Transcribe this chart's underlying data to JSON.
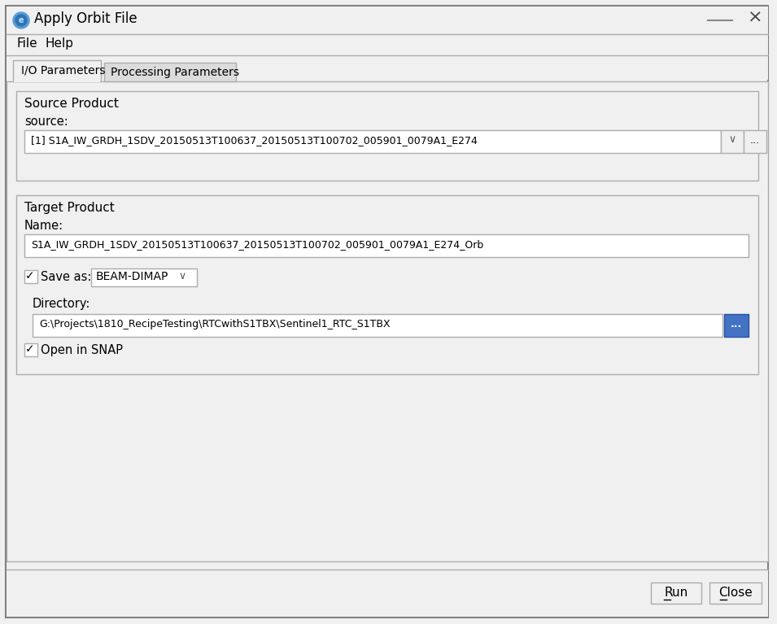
{
  "title": "Apply Orbit File",
  "menu_file": "File",
  "menu_help": "Help",
  "tab_active": "I/O Parameters",
  "tab_inactive": "Processing Parameters",
  "source_product_label": "Source Product",
  "source_label": "source:",
  "source_value": "[1] S1A_IW_GRDH_1SDV_20150513T100637_20150513T100702_005901_0079A1_E274",
  "target_product_label": "Target Product",
  "name_label": "Name:",
  "name_value": "S1A_IW_GRDH_1SDV_20150513T100637_20150513T100702_005901_0079A1_E274_Orb",
  "save_as_label": "Save as:",
  "save_as_value": "BEAM-DIMAP",
  "directory_label": "Directory:",
  "directory_value": "G:\\Projects\\1810_RecipeTesting\\RTCwithS1TBX\\Sentinel1_RTC_S1TBX",
  "open_in_snap_label": "Open in SNAP",
  "btn_run": "Run",
  "btn_close": "Close",
  "bg_outer": "#d4d0c8",
  "bg_dialog": "#f0f0f0",
  "bg_white": "#ffffff",
  "bg_section": "#f0f0f0",
  "border_dark": "#808080",
  "border_light": "#ffffff",
  "border_mid": "#adadad",
  "text_color": "#000000",
  "tab_active_bg": "#f0f0f0",
  "tab_inactive_bg": "#dcdcdc",
  "input_bg": "#ffffff",
  "button_bg": "#f0f0f0",
  "blue_btn_bg": "#4472c4",
  "blue_btn_border": "#2a52a0"
}
